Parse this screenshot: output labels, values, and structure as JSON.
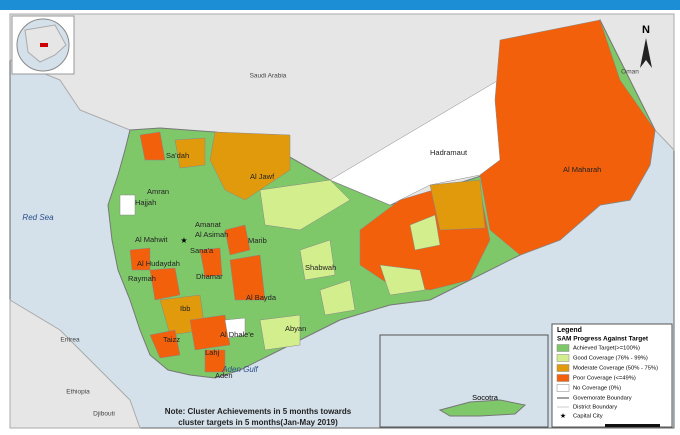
{
  "map": {
    "countries": [
      "Saudi Arabia",
      "Oman",
      "Eritrea",
      "Ethiopia",
      "Djibouti"
    ],
    "seas": [
      "Red Sea",
      "Aden Gulf"
    ],
    "places": [
      "Sa'dah",
      "Amran",
      "Hajjah",
      "Al Jawf",
      "Amanat",
      "Al Asimah",
      "Sana'a",
      "Al Mahwit",
      "Marib",
      "Al Hudaydah",
      "Raymah",
      "Dhamar",
      "Shabwah",
      "Al Bayda",
      "Ibb",
      "Al Dhale'e",
      "Abyan",
      "Taizz",
      "Lahj",
      "Aden",
      "Hadramaut",
      "Al Maharah"
    ],
    "north": "N",
    "inset": "Socotra"
  },
  "legend": {
    "title": "Legend",
    "subtitle": "SAM Progress Against Target",
    "items": [
      {
        "label": "Achieved Target(>=100%)",
        "color": "#7ec86a"
      },
      {
        "label": "Good Coverage (76% - 99%)",
        "color": "#d3ee8c"
      },
      {
        "label": "Moderate Coverage (50% - 75%)",
        "color": "#e19a0c"
      },
      {
        "label": "Poor Coverage (<=49%)",
        "color": "#f2600c"
      },
      {
        "label": "No Coverage (0%)",
        "color": "#ffffff"
      }
    ],
    "lines": [
      "Governorate Boundary",
      "District Boundary",
      "Capital City"
    ]
  },
  "note": [
    "Note: Cluster Achievements in 5  months towards",
    "cluster targets in 5 months(Jan-May 2019)"
  ]
}
